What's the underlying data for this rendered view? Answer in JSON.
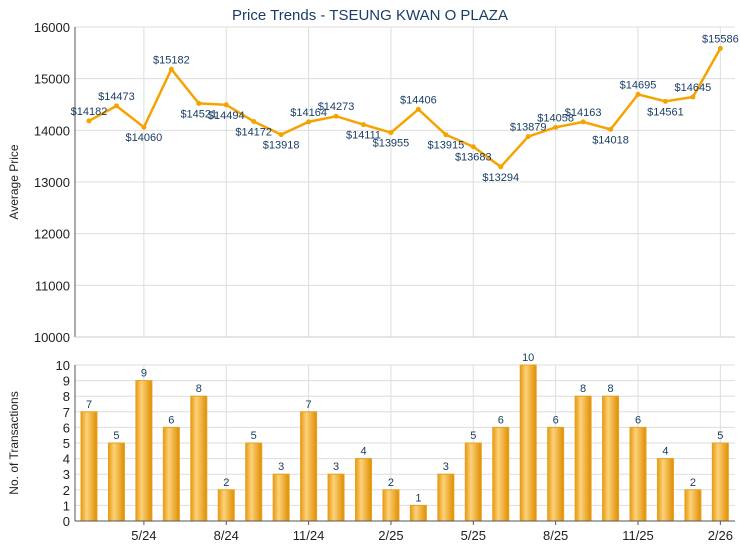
{
  "chart_data": [
    {
      "type": "line",
      "title": "Price Trends - TSEUNG KWAN O PLAZA",
      "ylabel": "Average Price",
      "ylim": [
        10000,
        16000
      ],
      "yticks": [
        "10000",
        "11000",
        "12000",
        "13000",
        "14000",
        "15000",
        "16000"
      ],
      "values": [
        14182,
        14473,
        14060,
        15182,
        14521,
        14494,
        14172,
        13918,
        14164,
        14273,
        14111,
        13955,
        14406,
        13915,
        13683,
        13294,
        13879,
        14058,
        14163,
        14018,
        14695,
        14561,
        14645,
        15586
      ],
      "labels": [
        "$14182",
        "$14473",
        "$14060",
        "$15182",
        "$14521",
        "$14494",
        "$14172",
        "$13918",
        "$14164",
        "$14273",
        "$14111",
        "$13955",
        "$14406",
        "$13915",
        "$13683",
        "$13294",
        "$13879",
        "$14058",
        "$14163",
        "$14018",
        "$14695",
        "$14561",
        "$14645",
        "$15586"
      ],
      "color": "#f5a300"
    },
    {
      "type": "bar",
      "ylabel": "No. of Transactions",
      "ylim": [
        0,
        10
      ],
      "yticks": [
        "0",
        "1",
        "2",
        "3",
        "4",
        "5",
        "6",
        "7",
        "8",
        "9",
        "10"
      ],
      "values": [
        7,
        5,
        9,
        6,
        8,
        2,
        5,
        3,
        7,
        3,
        4,
        2,
        1,
        3,
        5,
        6,
        10,
        6,
        8,
        8,
        6,
        4,
        2,
        5
      ],
      "xticks": [
        {
          "index": 2,
          "label": "5/24"
        },
        {
          "index": 5,
          "label": "8/24"
        },
        {
          "index": 8,
          "label": "11/24"
        },
        {
          "index": 11,
          "label": "2/25"
        },
        {
          "index": 14,
          "label": "5/25"
        },
        {
          "index": 17,
          "label": "8/25"
        },
        {
          "index": 20,
          "label": "11/25"
        },
        {
          "index": 23,
          "label": "2/26"
        }
      ],
      "color": "#f0a820"
    }
  ]
}
